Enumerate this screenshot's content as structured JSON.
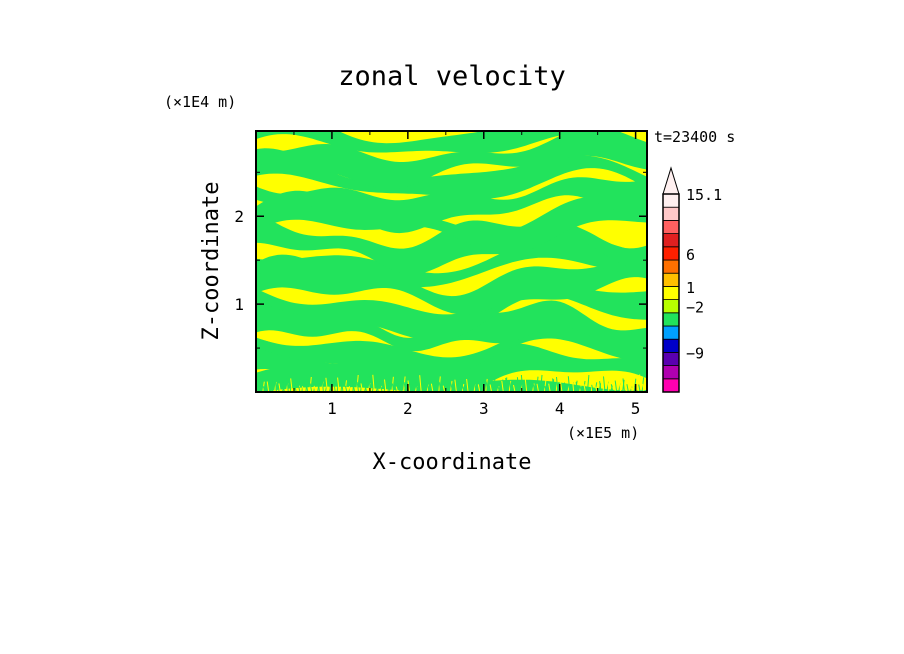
{
  "chart_data": {
    "type": "heatmap",
    "title": "zonal velocity",
    "xlabel": "X-coordinate",
    "ylabel": "Z-coordinate",
    "x_unit_label": "(×1E5 m)",
    "y_unit_label": "(×1E4 m)",
    "time_label": "t=23400 s",
    "xlim": [
      0,
      5.15
    ],
    "ylim": [
      0,
      2.97
    ],
    "x_ticks": [
      1,
      2,
      3,
      4,
      5
    ],
    "y_ticks": [
      1,
      2
    ],
    "field_colors": {
      "positive": "#ffff00",
      "near_zero": "#22e35c"
    },
    "colorbar": {
      "labels": [
        "15.1",
        "6",
        "1",
        "−2",
        "−9"
      ],
      "colors": [
        "#ff00b0",
        "#b000b0",
        "#5a00b0",
        "#0000c8",
        "#00a0ff",
        "#22e35c",
        "#b8ff00",
        "#ffff00",
        "#ffc000",
        "#ff7000",
        "#ff2000",
        "#e02020",
        "#ff6060",
        "#ffc8c8",
        "#fff0f0"
      ],
      "label_values": [
        15.1,
        6,
        1,
        -2,
        -9
      ]
    }
  }
}
